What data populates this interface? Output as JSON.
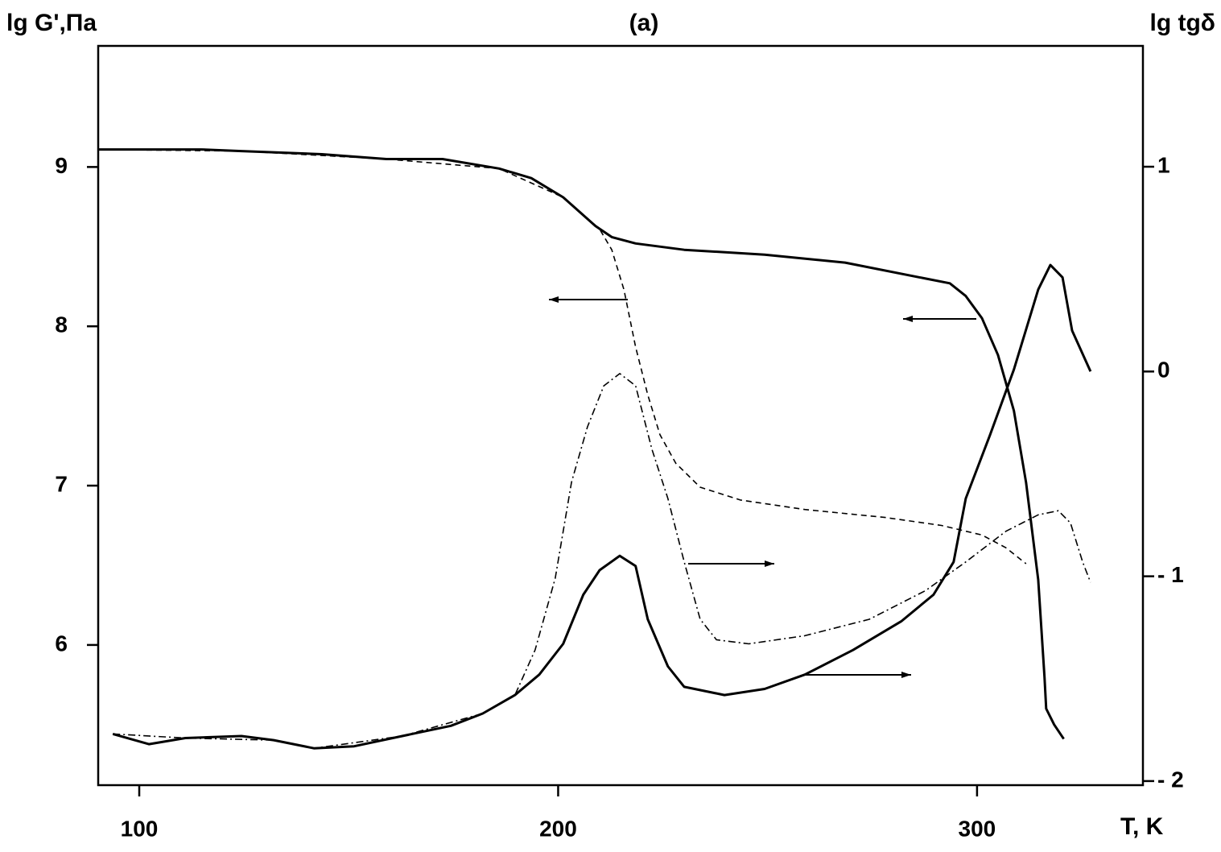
{
  "chart_data": {
    "type": "line",
    "title": "(a)",
    "y_label": "lg G',Па",
    "y2_label": "lg tgδ",
    "x_label": "T, K",
    "xlim": [
      90.2,
      339.6
    ],
    "xticks": [
      100,
      200,
      300
    ],
    "ylim": [
      5.12,
      9.76
    ],
    "yticks": [
      6,
      7,
      8,
      9
    ],
    "y2lim": [
      -2.02,
      1.59
    ],
    "y2ticks": [
      {
        "value": -2,
        "label": "- 2"
      },
      {
        "value": -1,
        "label": "- 1"
      },
      0,
      1
    ],
    "series": [
      {
        "color": "#000000",
        "style": "solid",
        "x": [
          90.2,
          114.8,
          124.4,
          143.6,
          159.0,
          172.4,
          185.9,
          193.6,
          201.2,
          208.9,
          212.8,
          218.5,
          230.1,
          249.3,
          268.5,
          287.7,
          293.5,
          297.3,
          301.2,
          305.0,
          308.8,
          311.7,
          314.6,
          316.1,
          316.5,
          318.4,
          320.7
        ],
        "values": [
          9.11,
          9.11,
          9.1,
          9.08,
          9.05,
          9.05,
          8.99,
          8.93,
          8.81,
          8.63,
          8.56,
          8.52,
          8.48,
          8.45,
          8.4,
          8.3,
          8.27,
          8.19,
          8.05,
          7.82,
          7.47,
          7.02,
          6.41,
          5.8,
          5.6,
          5.5,
          5.41
        ]
      },
      {
        "color": "#000000",
        "style": "dashed",
        "x": [
          90.2,
          124.4,
          159.0,
          185.9,
          201.2,
          209.9,
          212.8,
          215.7,
          218.5,
          221.4,
          224.3,
          228.1,
          233.9,
          243.5,
          258.9,
          278.1,
          291.5,
          301.2,
          306.9,
          311.7
        ],
        "values": [
          9.11,
          9.1,
          9.05,
          8.99,
          8.81,
          8.61,
          8.48,
          8.23,
          7.87,
          7.57,
          7.32,
          7.14,
          6.99,
          6.91,
          6.85,
          6.8,
          6.75,
          6.69,
          6.61,
          6.51
        ]
      },
      {
        "color": "#000000",
        "style": "solid",
        "axis": "y2",
        "x": [
          93.7,
          102.3,
          111.0,
          124.4,
          132.1,
          141.7,
          151.3,
          162.8,
          174.4,
          182.0,
          189.7,
          195.5,
          201.2,
          206.0,
          209.9,
          214.7,
          218.5,
          221.4,
          226.2,
          230.1,
          239.7,
          249.3,
          258.9,
          270.4,
          281.9,
          289.6,
          294.4,
          297.3,
          303.1,
          308.8,
          314.6,
          317.5,
          320.4,
          322.7,
          327.1
        ],
        "values": [
          -1.77,
          -1.82,
          -1.79,
          -1.78,
          -1.8,
          -1.84,
          -1.83,
          -1.78,
          -1.73,
          -1.67,
          -1.58,
          -1.48,
          -1.33,
          -1.09,
          -0.97,
          -0.9,
          -0.95,
          -1.21,
          -1.44,
          -1.54,
          -1.58,
          -1.55,
          -1.48,
          -1.36,
          -1.22,
          -1.09,
          -0.93,
          -0.62,
          -0.31,
          0.01,
          0.4,
          0.52,
          0.46,
          0.2,
          0.0
        ]
      },
      {
        "color": "#000000",
        "style": "dashdot",
        "axis": "y2",
        "x": [
          93.7,
          111.0,
          132.1,
          141.7,
          162.8,
          182.0,
          189.7,
          194.5,
          199.3,
          203.2,
          207.0,
          210.9,
          214.7,
          218.5,
          222.4,
          226.2,
          230.1,
          233.9,
          237.8,
          245.5,
          258.9,
          274.3,
          287.7,
          297.3,
          306.9,
          314.6,
          319.4,
          322.3,
          325.2,
          327.1
        ],
        "values": [
          -1.77,
          -1.79,
          -1.8,
          -1.84,
          -1.78,
          -1.67,
          -1.58,
          -1.36,
          -1.01,
          -0.54,
          -0.27,
          -0.07,
          -0.01,
          -0.07,
          -0.38,
          -0.62,
          -0.93,
          -1.21,
          -1.31,
          -1.33,
          -1.29,
          -1.21,
          -1.07,
          -0.93,
          -0.78,
          -0.7,
          -0.68,
          -0.74,
          -0.93,
          -1.03
        ]
      }
    ]
  }
}
